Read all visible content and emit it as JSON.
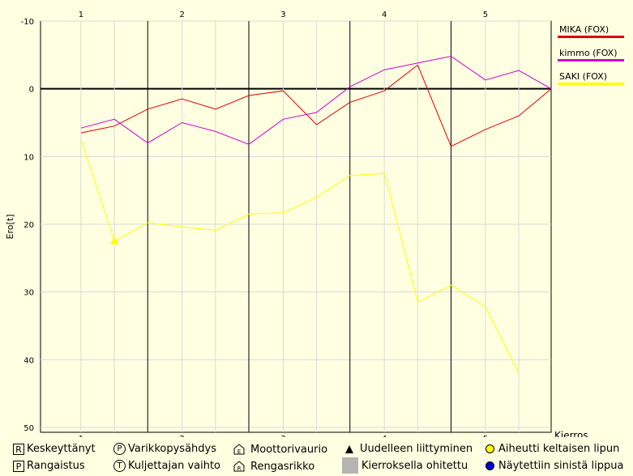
{
  "chart_data": {
    "type": "line",
    "xlabel": "Kierros",
    "ylabel": "Ero[t]",
    "y_inverted": true,
    "ylim": [
      -10,
      50
    ],
    "yticks": [
      -10,
      0,
      10,
      20,
      30,
      40,
      50
    ],
    "xlim": [
      0.6,
      5.65
    ],
    "lap_labels": [
      1,
      2,
      3,
      4,
      5
    ],
    "lap_label_positions": [
      1,
      2,
      3,
      4,
      5
    ],
    "lap_dividers": [
      1.66,
      2.66,
      3.66,
      4.66
    ],
    "sub_grid_x": [
      1,
      1.33,
      2,
      2.33,
      3,
      3.33,
      4,
      4.33,
      5,
      5.33
    ],
    "grid": true,
    "legend_position": "right",
    "series": [
      {
        "name": "MIKA (FOX)",
        "color": "#dd0000",
        "points": [
          [
            1,
            6.5
          ],
          [
            1.33,
            5.5
          ],
          [
            1.66,
            3.0
          ],
          [
            2,
            1.5
          ],
          [
            2.33,
            3.0
          ],
          [
            2.66,
            1.0
          ],
          [
            3,
            0.3
          ],
          [
            3.33,
            5.3
          ],
          [
            3.66,
            2.0
          ],
          [
            4,
            0.3
          ],
          [
            4.33,
            -3.5
          ],
          [
            4.66,
            8.5
          ],
          [
            5,
            6.0
          ],
          [
            5.33,
            4.0
          ],
          [
            5.65,
            0.0
          ]
        ]
      },
      {
        "name": "kimmo (FOX)",
        "color": "#cc00cc",
        "points": [
          [
            1,
            5.8
          ],
          [
            1.33,
            4.5
          ],
          [
            1.66,
            8.0
          ],
          [
            2,
            5.0
          ],
          [
            2.33,
            6.3
          ],
          [
            2.66,
            8.2
          ],
          [
            3,
            4.5
          ],
          [
            3.33,
            3.5
          ],
          [
            3.66,
            -0.3
          ],
          [
            4,
            -2.8
          ],
          [
            4.33,
            -3.8
          ],
          [
            4.66,
            -4.8
          ],
          [
            5,
            -1.3
          ],
          [
            5.33,
            -2.7
          ],
          [
            5.65,
            0.0
          ]
        ]
      },
      {
        "name": "SAKI (FOX)",
        "color": "#ffff00",
        "points": [
          [
            1,
            7.5
          ],
          [
            1.33,
            22.5
          ],
          [
            1.66,
            19.8
          ],
          [
            2,
            20.4
          ],
          [
            2.33,
            20.9
          ],
          [
            2.66,
            18.5
          ],
          [
            3,
            18.3
          ],
          [
            3.33,
            16.0
          ],
          [
            3.66,
            12.8
          ],
          [
            4,
            12.5
          ],
          [
            4.33,
            31.5
          ],
          [
            4.66,
            29.0
          ],
          [
            5,
            32.2
          ],
          [
            5.33,
            42.0
          ]
        ],
        "rejoin_marker_at": [
          1.33,
          22.5
        ]
      }
    ]
  },
  "footer": {
    "items": [
      {
        "symbol": "R",
        "label": "Keskeyttänyt"
      },
      {
        "symbol": "P",
        "label": "Rangaistus"
      },
      {
        "symbol": "P",
        "label": "Varikkopysähdys"
      },
      {
        "symbol": "T",
        "label": "Kuljettajan vaihto"
      },
      {
        "symbol": "E",
        "label": "Moottorivaurio"
      },
      {
        "symbol": "R",
        "label": "Rengasrikko"
      },
      {
        "label": "Uudelleen liittyminen"
      },
      {
        "label": "Kierroksella ohitettu"
      },
      {
        "label": "Aiheutti keltaisen lipun",
        "color": "#ffff00"
      },
      {
        "label": "Näytettiin sinistä lippua",
        "color": "#0000dd"
      }
    ]
  }
}
